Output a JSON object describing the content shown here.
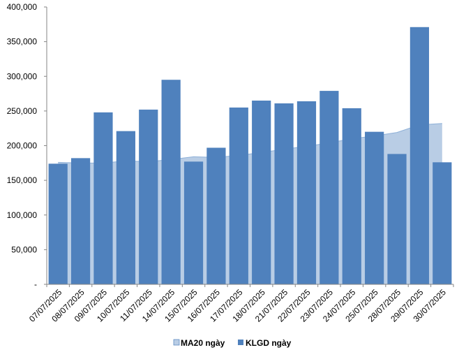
{
  "chart_data": {
    "type": "bar",
    "categories": [
      "07/07/2025",
      "08/07/2025",
      "09/07/2025",
      "10/07/2025",
      "11/07/2025",
      "14/07/2025",
      "15/07/2025",
      "16/07/2025",
      "17/07/2025",
      "18/07/2025",
      "21/07/2025",
      "22/07/2025",
      "23/07/2025",
      "24/07/2025",
      "25/07/2025",
      "28/07/2025",
      "29/07/2025",
      "30/07/2025"
    ],
    "series": [
      {
        "name": "KLGD ngày",
        "kind": "bar",
        "color": "#4f81bd",
        "values": [
          174000,
          182000,
          248000,
          221000,
          252000,
          295000,
          177000,
          197000,
          255000,
          265000,
          261000,
          264000,
          279000,
          254000,
          220000,
          188000,
          371000,
          176000
        ]
      },
      {
        "name": "MA20 ngày",
        "kind": "area",
        "color": "#b9cde5",
        "values": [
          176000,
          175000,
          175000,
          178000,
          177000,
          180000,
          184000,
          183000,
          186000,
          190000,
          195000,
          199000,
          204000,
          210000,
          214000,
          219000,
          230000,
          232000
        ]
      }
    ],
    "yticks": [
      "-",
      "50,000",
      "100,000",
      "150,000",
      "200,000",
      "250,000",
      "300,000",
      "350,000",
      "400,000"
    ],
    "ylim": [
      0,
      400000
    ],
    "title": "",
    "xlabel": "",
    "ylabel": "",
    "legend_position": "bottom",
    "grid": false
  }
}
